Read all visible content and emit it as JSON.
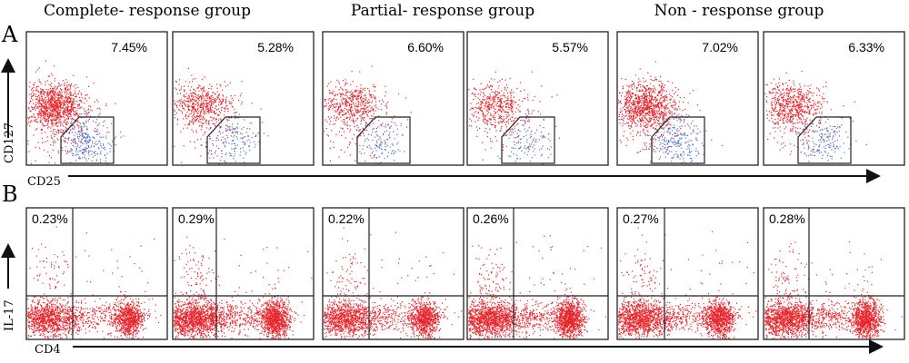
{
  "panel_labels": {
    "a": "A",
    "b": "B"
  },
  "groups": [
    "Complete- response group",
    "Partial- response group",
    "Non - response group"
  ],
  "axes": {
    "a_y": "CD127",
    "a_x": "CD25",
    "b_y": "IL-17",
    "b_x": "CD4"
  },
  "colors": {
    "population": "#e8232a",
    "gated": "#4a6fd0",
    "frame": "#222222"
  },
  "chart_data": [
    {
      "type": "scatter",
      "panel": "A",
      "x_label": "CD25",
      "y_label": "CD127",
      "plots": [
        {
          "group": "Complete- response group",
          "percent": "7.45%"
        },
        {
          "group": "Complete- response group",
          "percent": "5.28%"
        },
        {
          "group": "Partial- response group",
          "percent": "6.60%"
        },
        {
          "group": "Partial- response group",
          "percent": "5.57%"
        },
        {
          "group": "Non - response group",
          "percent": "7.02%"
        },
        {
          "group": "Non - response group",
          "percent": "6.33%"
        }
      ]
    },
    {
      "type": "scatter",
      "panel": "B",
      "x_label": "CD4",
      "y_label": "IL-17",
      "plots": [
        {
          "group": "Complete- response group",
          "percent": "0.23%"
        },
        {
          "group": "Complete- response group",
          "percent": "0.29%"
        },
        {
          "group": "Partial- response group",
          "percent": "0.22%"
        },
        {
          "group": "Partial- response group",
          "percent": "0.26%"
        },
        {
          "group": "Non - response group",
          "percent": "0.27%"
        },
        {
          "group": "Non - response group",
          "percent": "0.28%"
        }
      ]
    }
  ]
}
